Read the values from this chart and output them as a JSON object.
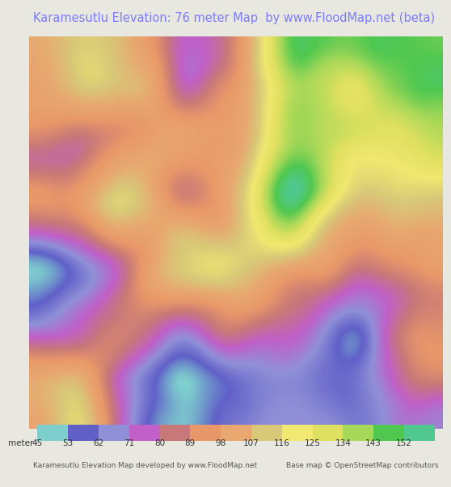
{
  "title": "Karamesutlu Elevation: 76 meter Map  by www.FloodMap.net (beta)",
  "title_color": "#7b7bff",
  "title_fontsize": 10.5,
  "bg_color": "#e8e8e0",
  "map_bg": "#e8e8e0",
  "colorbar_label": "meter 45",
  "colorbar_ticks": [
    45,
    53,
    62,
    71,
    80,
    89,
    98,
    107,
    116,
    125,
    134,
    143,
    152
  ],
  "colorbar_colors": [
    "#7ecece",
    "#6060c8",
    "#9090d8",
    "#c060c8",
    "#c87878",
    "#e89868",
    "#e8a870",
    "#d8c878",
    "#f0e870",
    "#e0e060",
    "#a8d858",
    "#50c850",
    "#50c890"
  ],
  "footer_left": "Karamesutlu Elevation Map developed by www.FloodMap.net",
  "footer_right": "Base map © OpenStreetMap contributors",
  "footer_fontsize": 6.5,
  "label_fontsize": 7.5,
  "map_image_placeholder": true,
  "fig_width": 5.12,
  "fig_height": 5.82
}
